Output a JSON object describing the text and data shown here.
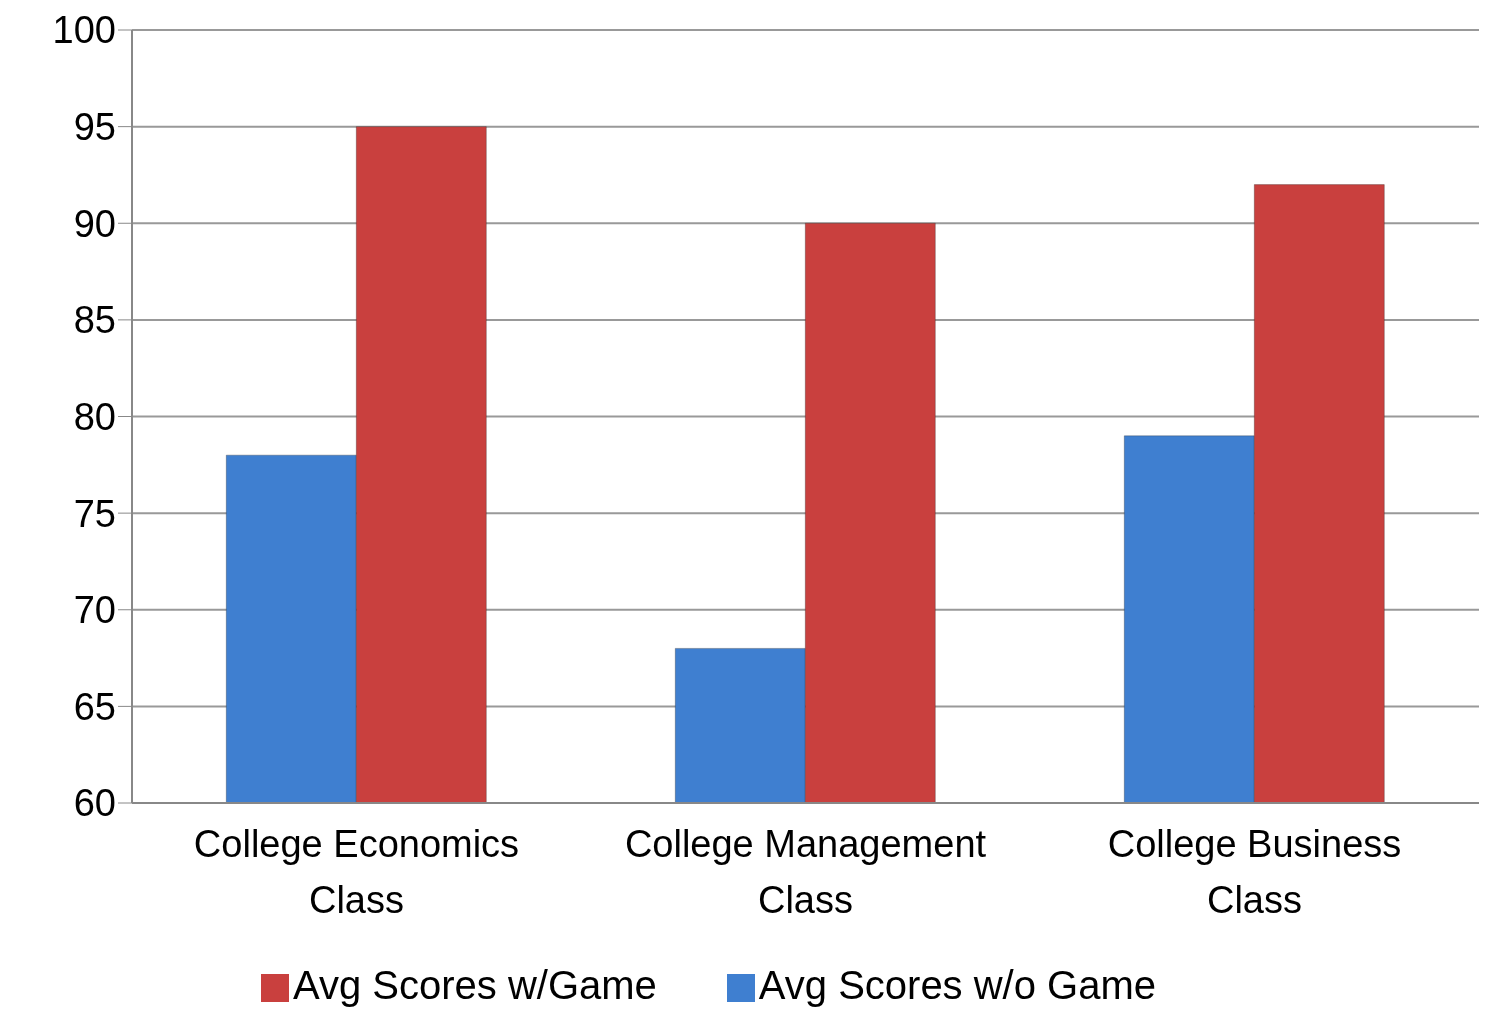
{
  "chart_data": {
    "type": "bar",
    "categories": [
      "College Economics Class",
      "College Management Class",
      "College Business Class"
    ],
    "series": [
      {
        "name": "Avg Scores w/o Game",
        "color": "#3f7fd0",
        "values": [
          78,
          68,
          79
        ]
      },
      {
        "name": "Avg Scores w/Game",
        "color": "#c9403e",
        "values": [
          95,
          90,
          92
        ]
      }
    ],
    "ylim": [
      60,
      100
    ],
    "yticks": [
      60,
      65,
      70,
      75,
      80,
      85,
      90,
      95,
      100
    ],
    "grid": "y",
    "legend": "bottom"
  }
}
